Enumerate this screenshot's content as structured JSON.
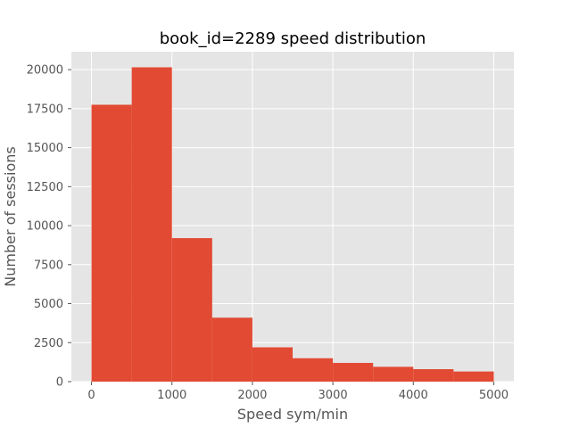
{
  "chart_data": {
    "type": "histogram",
    "title": "book_id=2289 speed distribution",
    "xlabel": "Speed sym/min",
    "ylabel": "Number of sessions",
    "xlim": [
      -250,
      5250
    ],
    "ylim": [
      0,
      21150
    ],
    "grid": true,
    "bins": [
      {
        "x0": 0,
        "x1": 500,
        "value": 17750
      },
      {
        "x0": 500,
        "x1": 1000,
        "value": 20150
      },
      {
        "x0": 1000,
        "x1": 1500,
        "value": 9200
      },
      {
        "x0": 1500,
        "x1": 2000,
        "value": 4100
      },
      {
        "x0": 2000,
        "x1": 2500,
        "value": 2200
      },
      {
        "x0": 2500,
        "x1": 3000,
        "value": 1500
      },
      {
        "x0": 3000,
        "x1": 3500,
        "value": 1200
      },
      {
        "x0": 3500,
        "x1": 4000,
        "value": 950
      },
      {
        "x0": 4000,
        "x1": 4500,
        "value": 800
      },
      {
        "x0": 4500,
        "x1": 5000,
        "value": 650
      }
    ],
    "xticks": [
      0,
      1000,
      2000,
      3000,
      4000,
      5000
    ],
    "yticks": [
      0,
      2500,
      5000,
      7500,
      10000,
      12500,
      15000,
      17500,
      20000
    ],
    "colors": {
      "bar": "#E24A33",
      "background": "#E5E5E5",
      "grid": "#FFFFFF"
    }
  }
}
